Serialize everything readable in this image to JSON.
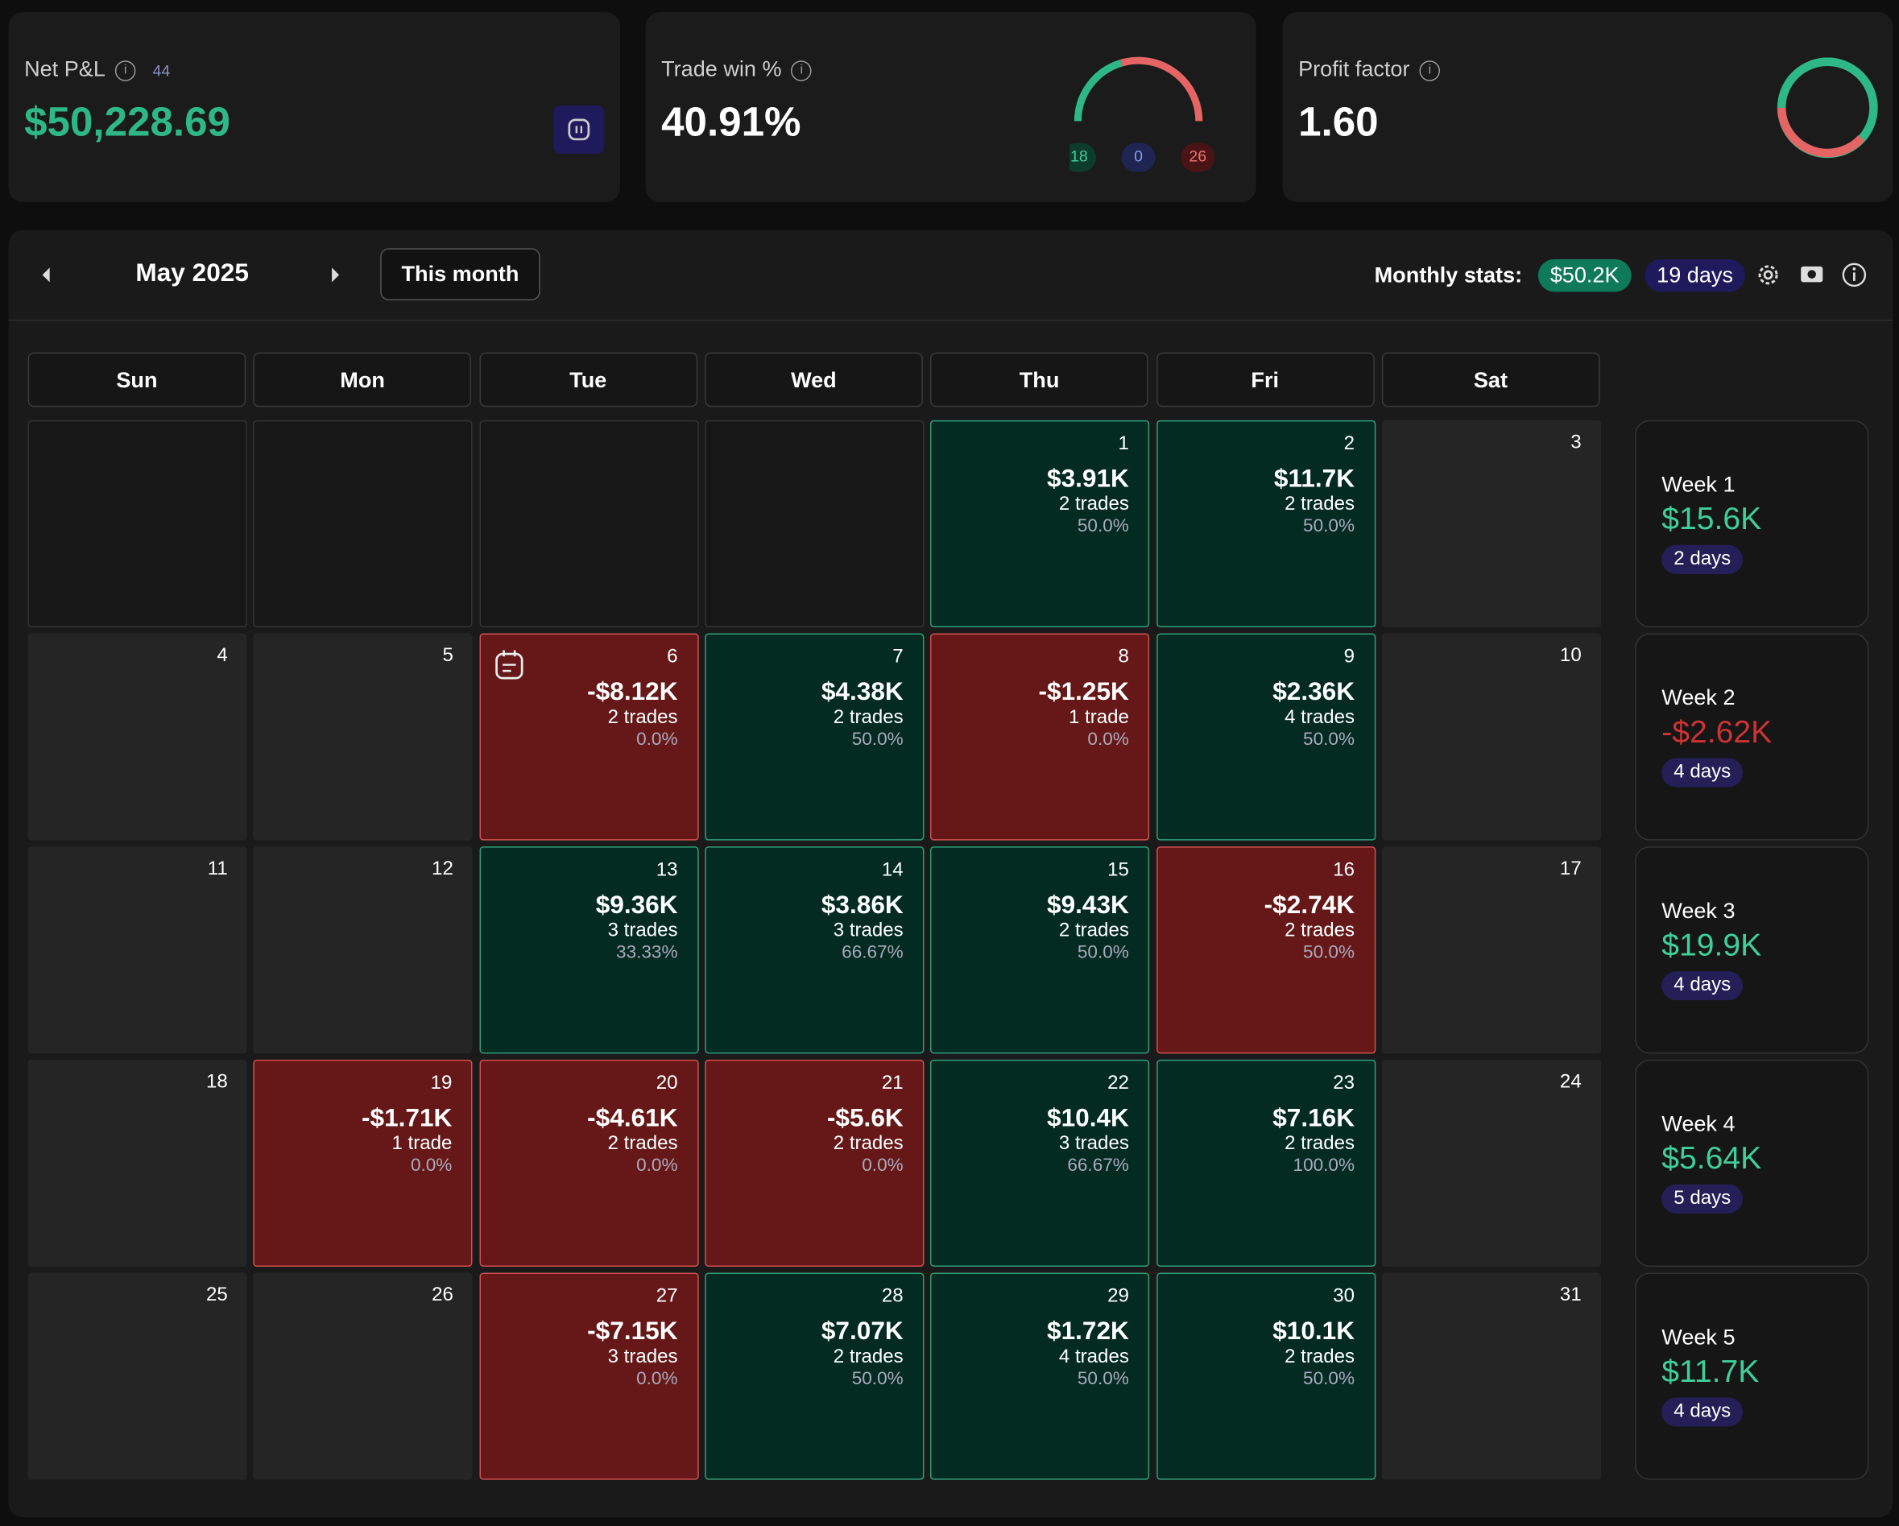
{
  "cards": [
    {
      "label": "Net P&L",
      "badge": "44",
      "value": "$50,228.69"
    },
    {
      "label": "Trade win %",
      "value": "40.91%",
      "gauge": {
        "win": 18,
        "neutral": 0,
        "loss": 26
      }
    },
    {
      "label": "Profit factor",
      "value": "1.60"
    }
  ],
  "calendar": {
    "month": "May 2025",
    "this_month": "This month",
    "monthly_stats_label": "Monthly stats:",
    "monthly_pnl": "$50.2K",
    "monthly_days": "19 days",
    "weekdays": [
      "Sun",
      "Mon",
      "Tue",
      "Wed",
      "Thu",
      "Fri",
      "Sat"
    ],
    "cells": [
      null,
      null,
      null,
      null,
      {
        "day": 1,
        "pnl": "$3.91K",
        "trades": "2 trades",
        "win": "50.0%"
      },
      {
        "day": 2,
        "pnl": "$11.7K",
        "trades": "2 trades",
        "win": "50.0%"
      },
      {
        "day": 3
      },
      {
        "day": 4
      },
      {
        "day": 5
      },
      {
        "day": 6,
        "pnl": "-$8.12K",
        "trades": "2 trades",
        "win": "0.0%",
        "note": true
      },
      {
        "day": 7,
        "pnl": "$4.38K",
        "trades": "2 trades",
        "win": "50.0%"
      },
      {
        "day": 8,
        "pnl": "-$1.25K",
        "trades": "1 trade",
        "win": "0.0%"
      },
      {
        "day": 9,
        "pnl": "$2.36K",
        "trades": "4 trades",
        "win": "50.0%"
      },
      {
        "day": 10
      },
      {
        "day": 11
      },
      {
        "day": 12
      },
      {
        "day": 13,
        "pnl": "$9.36K",
        "trades": "3 trades",
        "win": "33.33%"
      },
      {
        "day": 14,
        "pnl": "$3.86K",
        "trades": "3 trades",
        "win": "66.67%"
      },
      {
        "day": 15,
        "pnl": "$9.43K",
        "trades": "2 trades",
        "win": "50.0%"
      },
      {
        "day": 16,
        "pnl": "-$2.74K",
        "trades": "2 trades",
        "win": "50.0%"
      },
      {
        "day": 17
      },
      {
        "day": 18
      },
      {
        "day": 19,
        "pnl": "-$1.71K",
        "trades": "1 trade",
        "win": "0.0%"
      },
      {
        "day": 20,
        "pnl": "-$4.61K",
        "trades": "2 trades",
        "win": "0.0%"
      },
      {
        "day": 21,
        "pnl": "-$5.6K",
        "trades": "2 trades",
        "win": "0.0%"
      },
      {
        "day": 22,
        "pnl": "$10.4K",
        "trades": "3 trades",
        "win": "66.67%"
      },
      {
        "day": 23,
        "pnl": "$7.16K",
        "trades": "2 trades",
        "win": "100.0%"
      },
      {
        "day": 24
      },
      {
        "day": 25
      },
      {
        "day": 26
      },
      {
        "day": 27,
        "pnl": "-$7.15K",
        "trades": "3 trades",
        "win": "0.0%"
      },
      {
        "day": 28,
        "pnl": "$7.07K",
        "trades": "2 trades",
        "win": "50.0%"
      },
      {
        "day": 29,
        "pnl": "$1.72K",
        "trades": "4 trades",
        "win": "50.0%"
      },
      {
        "day": 30,
        "pnl": "$10.1K",
        "trades": "2 trades",
        "win": "50.0%"
      },
      {
        "day": 31
      }
    ],
    "weeks": [
      {
        "label": "Week 1",
        "pnl": "$15.6K",
        "days": "2 days"
      },
      {
        "label": "Week 2",
        "pnl": "-$2.62K",
        "days": "4 days"
      },
      {
        "label": "Week 3",
        "pnl": "$19.9K",
        "days": "4 days"
      },
      {
        "label": "Week 4",
        "pnl": "$5.64K",
        "days": "5 days"
      },
      {
        "label": "Week 5",
        "pnl": "$11.7K",
        "days": "4 days"
      }
    ]
  }
}
